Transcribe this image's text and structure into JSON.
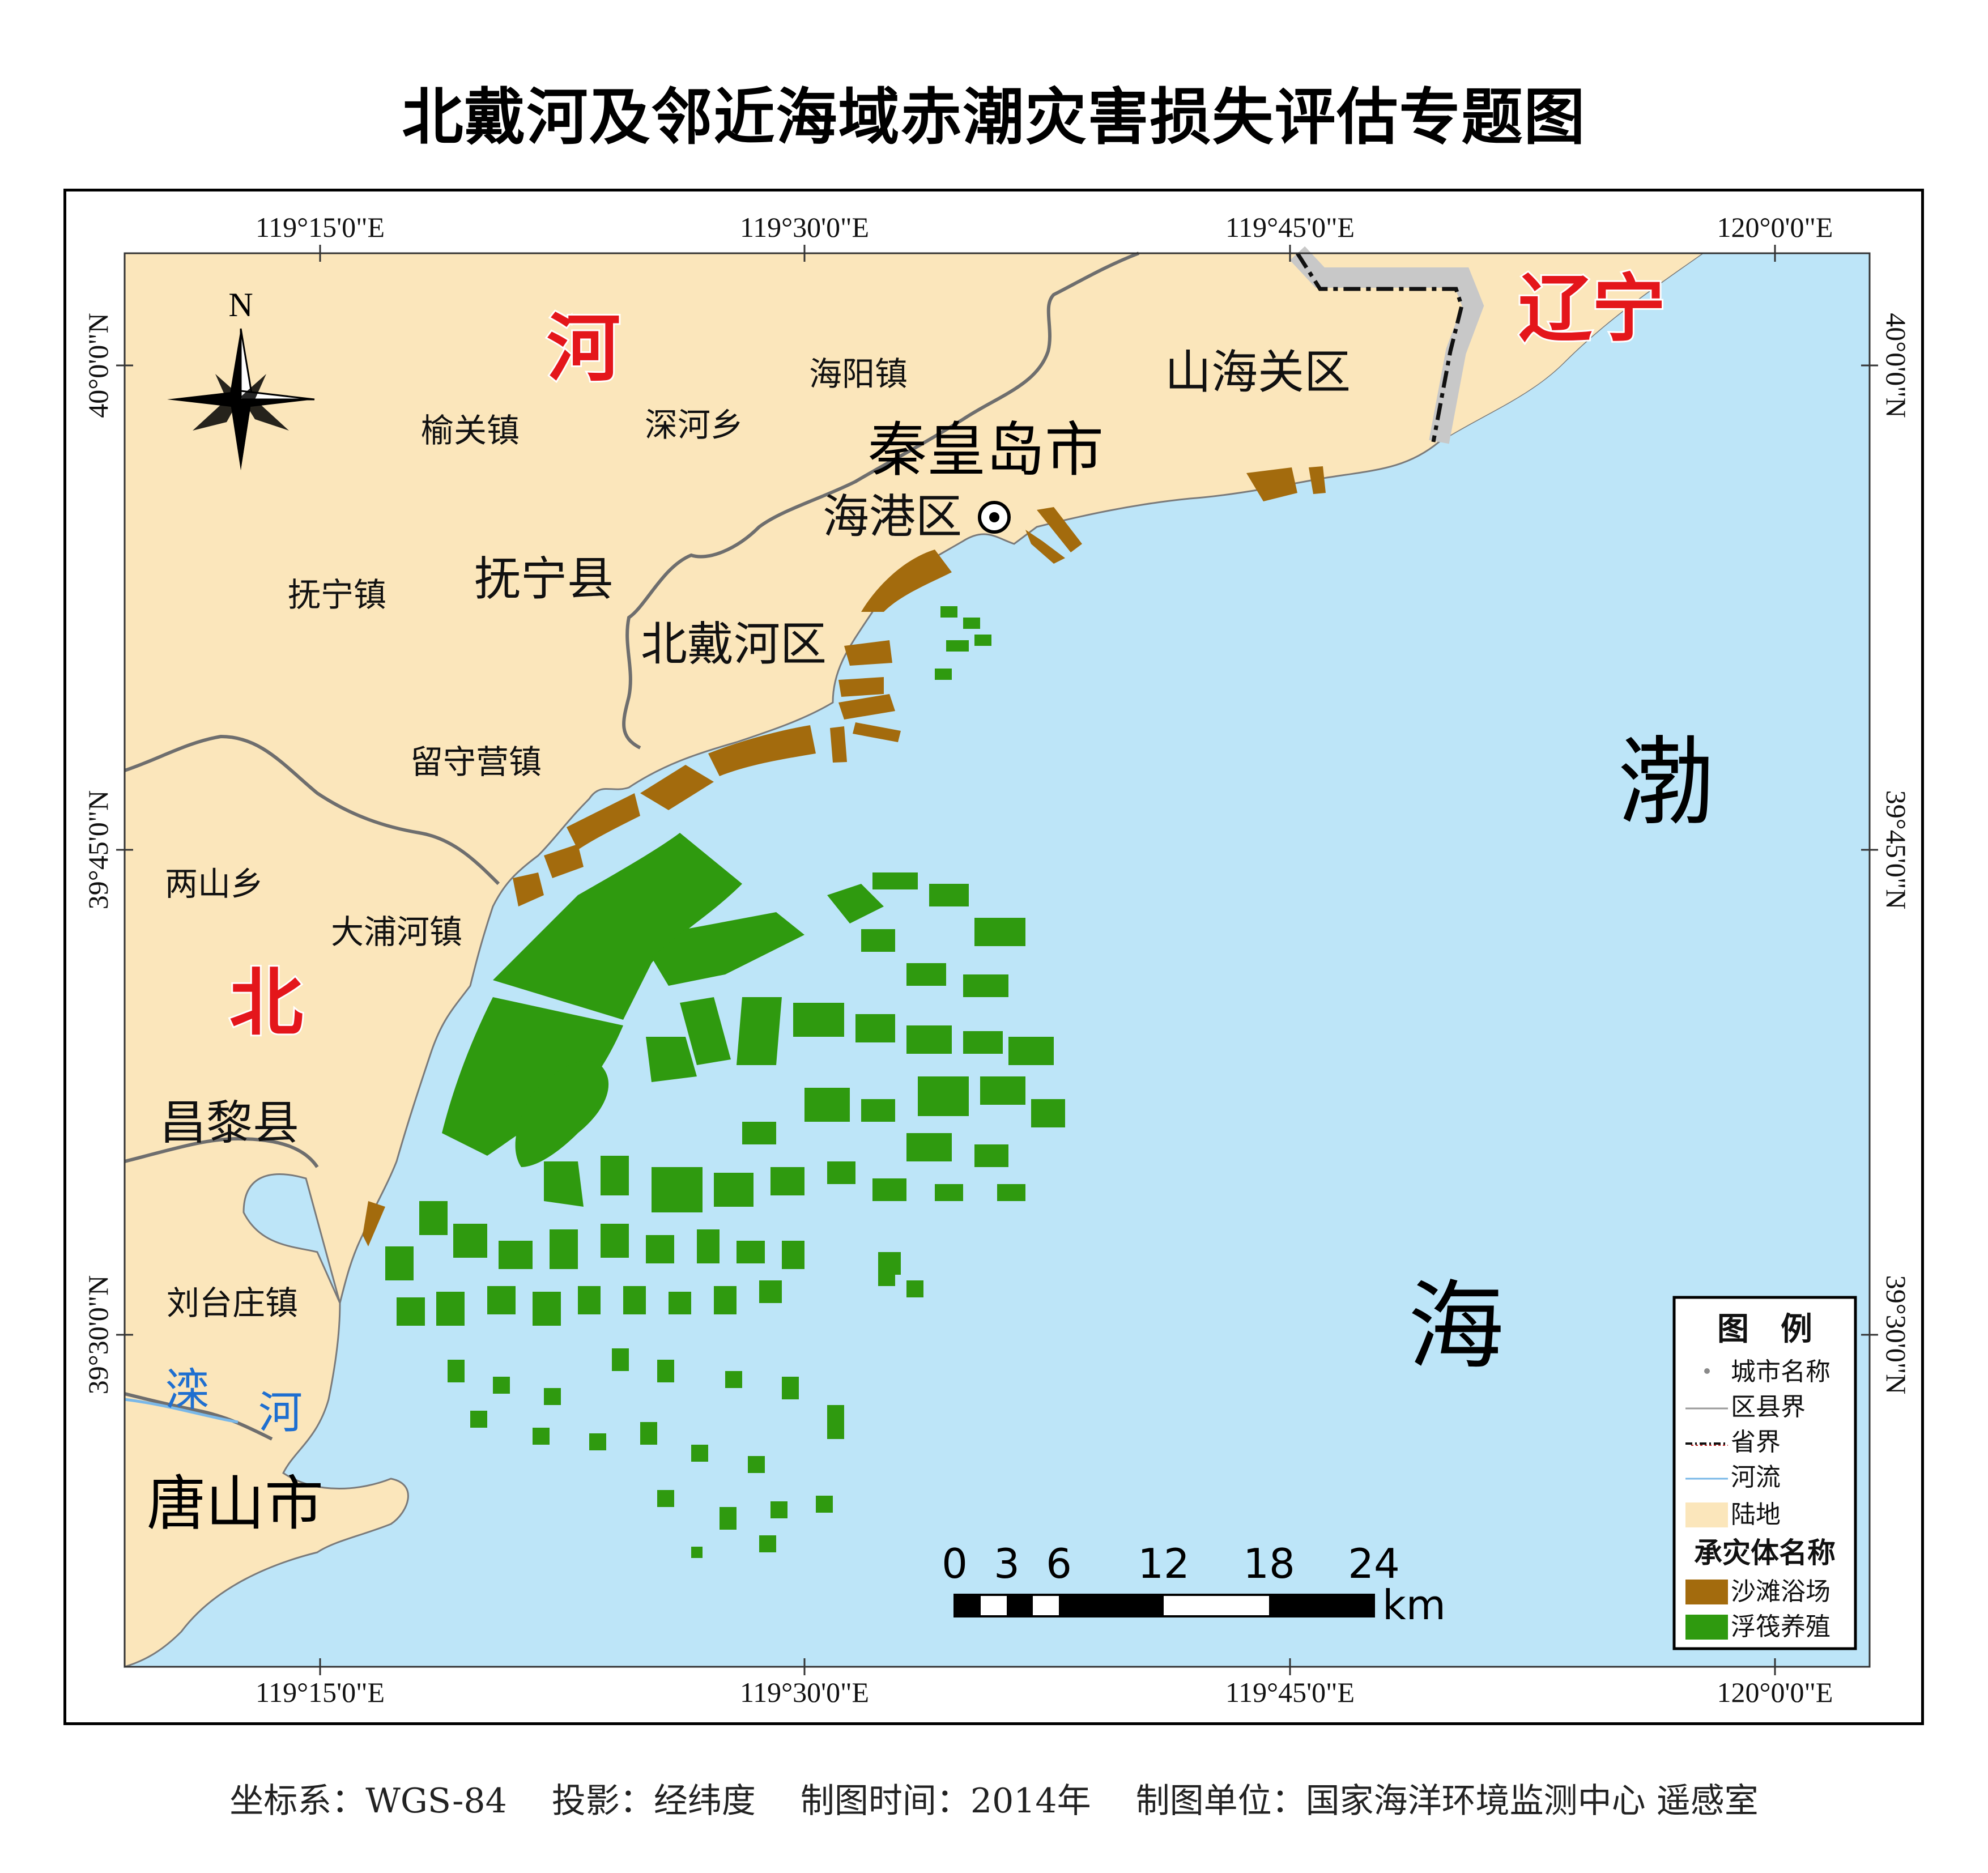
{
  "title": "北戴河及邻近海域赤潮灾害损失评估专题图",
  "coords": {
    "lon_labels": [
      "119°15'0\"E",
      "119°30'0\"E",
      "119°45'0\"E",
      "120°0'0\"E"
    ],
    "lat_labels": [
      "40°0'0\"N",
      "39°45'0\"N",
      "39°30'0\"N"
    ]
  },
  "north_arrow": {
    "label": "N"
  },
  "places": {
    "provinces": {
      "hebei_1": "河",
      "hebei_2": "北",
      "liaoning": "辽宁"
    },
    "cities": {
      "qinhuangdao": "秦皇岛市",
      "tangshan": "唐山市"
    },
    "counties": {
      "funing": "抚宁县",
      "changli": "昌黎县"
    },
    "districts": {
      "shanhaiguan": "山海关区",
      "beidaihe": "北戴河区",
      "haigang": "海港区"
    },
    "towns": {
      "yuguan": "榆关镇",
      "shenhe": "深河乡",
      "haiyang": "海阳镇",
      "funing_town": "抚宁镇",
      "liushouying": "留守营镇",
      "liangshan": "两山乡",
      "dapuhe": "大浦河镇",
      "liutaizhuang": "刘台庄镇"
    },
    "sea": {
      "bo": "渤",
      "hai": "海"
    },
    "river": {
      "luan_1": "滦",
      "luan_2": "河"
    }
  },
  "legend": {
    "title": "图　例",
    "items": [
      "城市名称",
      "区县界",
      "省界",
      "河流",
      "陆地"
    ],
    "subtitle": "承灾体名称",
    "categories": [
      "沙滩浴场",
      "浮筏养殖"
    ]
  },
  "scale_bar": {
    "ticks": [
      "0",
      "3",
      "6",
      "12",
      "18",
      "24"
    ],
    "unit": "km"
  },
  "colors": {
    "land": "#fbe6bb",
    "sea": "#bde5f8",
    "beach": "#a36b0d",
    "raft": "#2f9a0f",
    "province_label": "#e4161b",
    "river_label": "#1f6fd0"
  },
  "footer": {
    "crs": "坐标系：WGS-84",
    "projection": "投影：经纬度",
    "date": "制图时间：2014年",
    "unit": "制图单位：国家海洋环境监测中心 遥感室"
  }
}
